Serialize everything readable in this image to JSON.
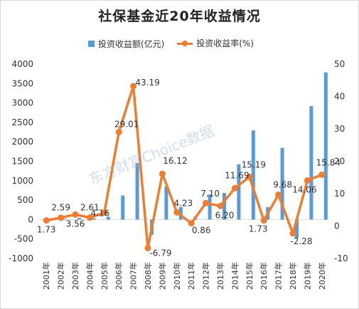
{
  "title": "社保基金近20年收益情况",
  "legend": {
    "bar_label": "投资收益额(亿元)",
    "line_label": "投资收益率(%)"
  },
  "watermark": "东方财富Choice数据",
  "colors": {
    "bar": "#5b9bd5",
    "line": "#ed7d31",
    "grid": "#d9d9d9"
  },
  "chart_data": {
    "type": "bar+line",
    "title": "社保基金近20年收益情况",
    "categories": [
      "2001年",
      "2002年",
      "2003年",
      "2004年",
      "2005年",
      "2006年",
      "2007年",
      "2008年",
      "2009年",
      "2010年",
      "2011年",
      "2012年",
      "2013年",
      "2014年",
      "2015年",
      "2016年",
      "2017年",
      "2018年",
      "2019年",
      "2020年"
    ],
    "left_axis": {
      "ylim": [
        -1000,
        4000
      ],
      "ticks": [
        -1000,
        -500,
        0,
        500,
        1000,
        1500,
        2000,
        2500,
        3000,
        3500,
        4000
      ]
    },
    "right_axis": {
      "ylim": [
        -10,
        50
      ],
      "ticks": [
        -10,
        0,
        10,
        20,
        30,
        40,
        50
      ]
    },
    "series": [
      {
        "name": "投资收益额(亿元)",
        "type": "bar",
        "axis": "left",
        "values": [
          7,
          19,
          45,
          36,
          71,
          620,
          1453,
          -393,
          850,
          321,
          73,
          646,
          685,
          1424,
          2294,
          319,
          1846,
          -476,
          2917,
          3786
        ]
      },
      {
        "name": "投资收益率(%)",
        "type": "line",
        "axis": "right",
        "values": [
          1.73,
          2.59,
          3.56,
          2.61,
          4.16,
          29.01,
          43.19,
          -6.79,
          16.12,
          4.23,
          0.86,
          7.1,
          6.2,
          11.69,
          15.19,
          1.73,
          9.68,
          -2.28,
          14.06,
          15.84
        ],
        "labels": [
          "1.73",
          "2.59",
          "3.56",
          "2.61",
          "4.16",
          "29.01",
          "43.19",
          "-6.79",
          "16.12",
          "4.23",
          "0.86",
          "7.10",
          "6.20",
          "11.69",
          "15.19",
          "1.73",
          "9.68",
          "-2.28",
          "14.06",
          "15.84"
        ]
      }
    ],
    "grid": false,
    "legend_position": "top"
  }
}
